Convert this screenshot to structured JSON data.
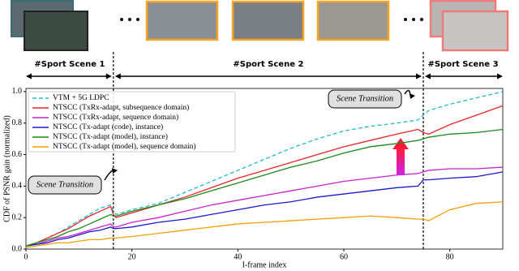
{
  "chart_data": {
    "type": "line",
    "x_label": "I-frame index",
    "y_label": "CDF of PSNR gain (normalized)",
    "xlim": [
      0,
      90
    ],
    "ylim": [
      0,
      1.02
    ],
    "xticks": [
      0,
      20,
      40,
      60,
      80
    ],
    "yticks": [
      {
        "value": 0,
        "label": "0.0"
      },
      0.2,
      0.4,
      0.6,
      0.8,
      {
        "value": 1,
        "label": "1.0"
      }
    ],
    "scenes": [
      "#Sport Scene 1",
      "#Sport Scene 2",
      "#Sport Scene 3"
    ],
    "scene_boundaries": [
      16.5,
      75
    ],
    "annotations": [
      "Scene Transition",
      "Scene Transition"
    ],
    "legend": "upper left",
    "x": [
      0,
      2,
      4,
      6,
      8,
      10,
      12,
      14,
      16,
      16.5,
      17,
      20,
      25,
      30,
      35,
      40,
      45,
      50,
      55,
      60,
      65,
      70,
      74,
      75,
      76,
      80,
      85,
      90
    ],
    "series": [
      {
        "name": "VTM + 5G LDPC",
        "color": "#22bbcc",
        "dashed": true,
        "values": [
          0.02,
          0.04,
          0.07,
          0.1,
          0.14,
          0.18,
          0.22,
          0.26,
          0.28,
          0.24,
          0.22,
          0.25,
          0.29,
          0.36,
          0.43,
          0.5,
          0.57,
          0.64,
          0.7,
          0.75,
          0.78,
          0.8,
          0.82,
          0.85,
          0.88,
          0.92,
          0.96,
          1.0
        ]
      },
      {
        "name": "NTSCC (TxRx-adapt, subsequence domain)",
        "color": "#e8242a",
        "values": [
          0.02,
          0.04,
          0.07,
          0.1,
          0.13,
          0.17,
          0.21,
          0.24,
          0.27,
          0.22,
          0.2,
          0.23,
          0.28,
          0.33,
          0.39,
          0.45,
          0.5,
          0.55,
          0.6,
          0.65,
          0.69,
          0.73,
          0.76,
          0.74,
          0.73,
          0.79,
          0.85,
          0.91
        ]
      },
      {
        "name": "NTSCC (TxRx-adapt, sequence domain)",
        "color": "#cc22cc",
        "values": [
          0.02,
          0.03,
          0.05,
          0.07,
          0.08,
          0.1,
          0.12,
          0.14,
          0.16,
          0.14,
          0.14,
          0.17,
          0.2,
          0.24,
          0.28,
          0.31,
          0.34,
          0.37,
          0.4,
          0.43,
          0.45,
          0.47,
          0.48,
          0.49,
          0.5,
          0.51,
          0.51,
          0.52
        ]
      },
      {
        "name": "NTSCC (Tx-adapt (code), instance)",
        "color": "#1a1acc",
        "values": [
          0.02,
          0.03,
          0.04,
          0.06,
          0.07,
          0.09,
          0.11,
          0.12,
          0.14,
          0.13,
          0.13,
          0.14,
          0.17,
          0.19,
          0.22,
          0.25,
          0.28,
          0.3,
          0.33,
          0.35,
          0.37,
          0.39,
          0.4,
          0.44,
          0.44,
          0.45,
          0.46,
          0.49
        ]
      },
      {
        "name": "NTSCC (Tx-adapt (model), instance)",
        "color": "#1a8a1a",
        "values": [
          0.02,
          0.04,
          0.06,
          0.08,
          0.11,
          0.13,
          0.16,
          0.19,
          0.22,
          0.21,
          0.21,
          0.24,
          0.28,
          0.32,
          0.37,
          0.42,
          0.47,
          0.52,
          0.56,
          0.61,
          0.65,
          0.67,
          0.69,
          0.7,
          0.71,
          0.73,
          0.74,
          0.76
        ]
      },
      {
        "name": "NTSCC (Tx-adapt (model), sequence domain)",
        "color": "#f5a000",
        "values": [
          0.01,
          0.02,
          0.03,
          0.04,
          0.04,
          0.05,
          0.06,
          0.06,
          0.07,
          0.07,
          0.07,
          0.08,
          0.1,
          0.12,
          0.14,
          0.16,
          0.17,
          0.18,
          0.19,
          0.2,
          0.21,
          0.2,
          0.19,
          0.19,
          0.18,
          0.25,
          0.29,
          0.3
        ]
      }
    ]
  }
}
